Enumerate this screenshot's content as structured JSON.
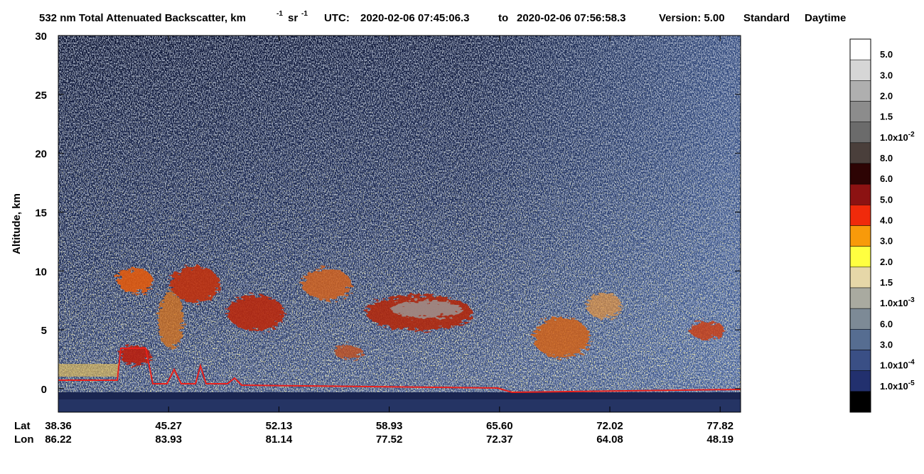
{
  "chart_data": {
    "type": "lidar-curtain",
    "title": {
      "main": "532 nm Total Attenuated Backscatter, km",
      "exp1": "-1",
      "unit2": "sr",
      "exp2": "-1"
    },
    "utc_label": "UTC:",
    "start": "2020-02-06 07:45:06.3",
    "to": "to",
    "end": "2020-02-06 07:56:58.3",
    "version": "Version: 5.00",
    "mode": "Standard",
    "lighting": "Daytime",
    "y_label": "Altitude, km",
    "ylim": [
      -2,
      30
    ],
    "yticks": [
      0,
      5,
      10,
      15,
      20,
      25,
      30
    ],
    "lat_label": "Lat",
    "lon_label": "Lon",
    "lat": [
      "38.36",
      "45.27",
      "52.13",
      "58.93",
      "65.60",
      "72.02",
      "77.82"
    ],
    "lon": [
      "86.22",
      "83.93",
      "81.14",
      "77.52",
      "72.37",
      "64.08",
      "48.19"
    ],
    "colorbar": {
      "colors": [
        "#ffffff",
        "#d6d6d6",
        "#afafaf",
        "#8c8c8c",
        "#6b6b6b",
        "#4a3f3b",
        "#2d0404",
        "#8c1212",
        "#f02a0b",
        "#f89a0a",
        "#ffff40",
        "#e6d7a8",
        "#a9aaa0",
        "#7d8a96",
        "#566d91",
        "#3a4f85",
        "#22306e",
        "#000000"
      ],
      "labels": [
        "5.0",
        "3.0",
        "2.0",
        "1.5",
        {
          "text": "1.0x10",
          "exp": "-2"
        },
        "8.0",
        "6.0",
        "5.0",
        "4.0",
        "3.0",
        "2.0",
        "1.5",
        {
          "text": "1.0x10",
          "exp": "-3"
        },
        "6.0",
        "3.0",
        {
          "text": "1.0x10",
          "exp": "-4"
        },
        {
          "text": "1.0x10",
          "exp": "-5"
        }
      ]
    }
  }
}
